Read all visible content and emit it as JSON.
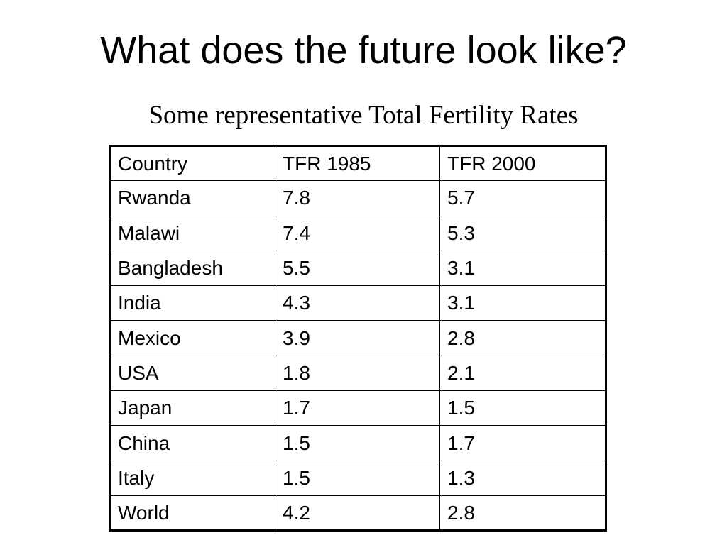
{
  "slide": {
    "title": "What does the future look like?",
    "subtitle": "Some representative Total Fertility Rates"
  },
  "table": {
    "headers": [
      "Country",
      "TFR 1985",
      "TFR 2000"
    ],
    "rows": [
      [
        "Rwanda",
        "7.8",
        "5.7"
      ],
      [
        "Malawi",
        "7.4",
        "5.3"
      ],
      [
        "Bangladesh",
        "5.5",
        "3.1"
      ],
      [
        "India",
        "4.3",
        "3.1"
      ],
      [
        "Mexico",
        "3.9",
        "2.8"
      ],
      [
        "USA",
        "1.8",
        "2.1"
      ],
      [
        "Japan",
        "1.7",
        "1.5"
      ],
      [
        "China",
        "1.5",
        "1.7"
      ],
      [
        "Italy",
        "1.5",
        "1.3"
      ],
      [
        "World",
        "4.2",
        "2.8"
      ]
    ]
  },
  "chart_data": {
    "type": "table",
    "title": "Some representative Total Fertility Rates",
    "columns": [
      "Country",
      "TFR 1985",
      "TFR 2000"
    ],
    "categories": [
      "Rwanda",
      "Malawi",
      "Bangladesh",
      "India",
      "Mexico",
      "USA",
      "Japan",
      "China",
      "Italy",
      "World"
    ],
    "series": [
      {
        "name": "TFR 1985",
        "values": [
          7.8,
          7.4,
          5.5,
          4.3,
          3.9,
          1.8,
          1.7,
          1.5,
          1.5,
          4.2
        ]
      },
      {
        "name": "TFR 2000",
        "values": [
          5.7,
          5.3,
          3.1,
          3.1,
          2.8,
          2.1,
          1.5,
          1.7,
          1.3,
          2.8
        ]
      }
    ]
  }
}
